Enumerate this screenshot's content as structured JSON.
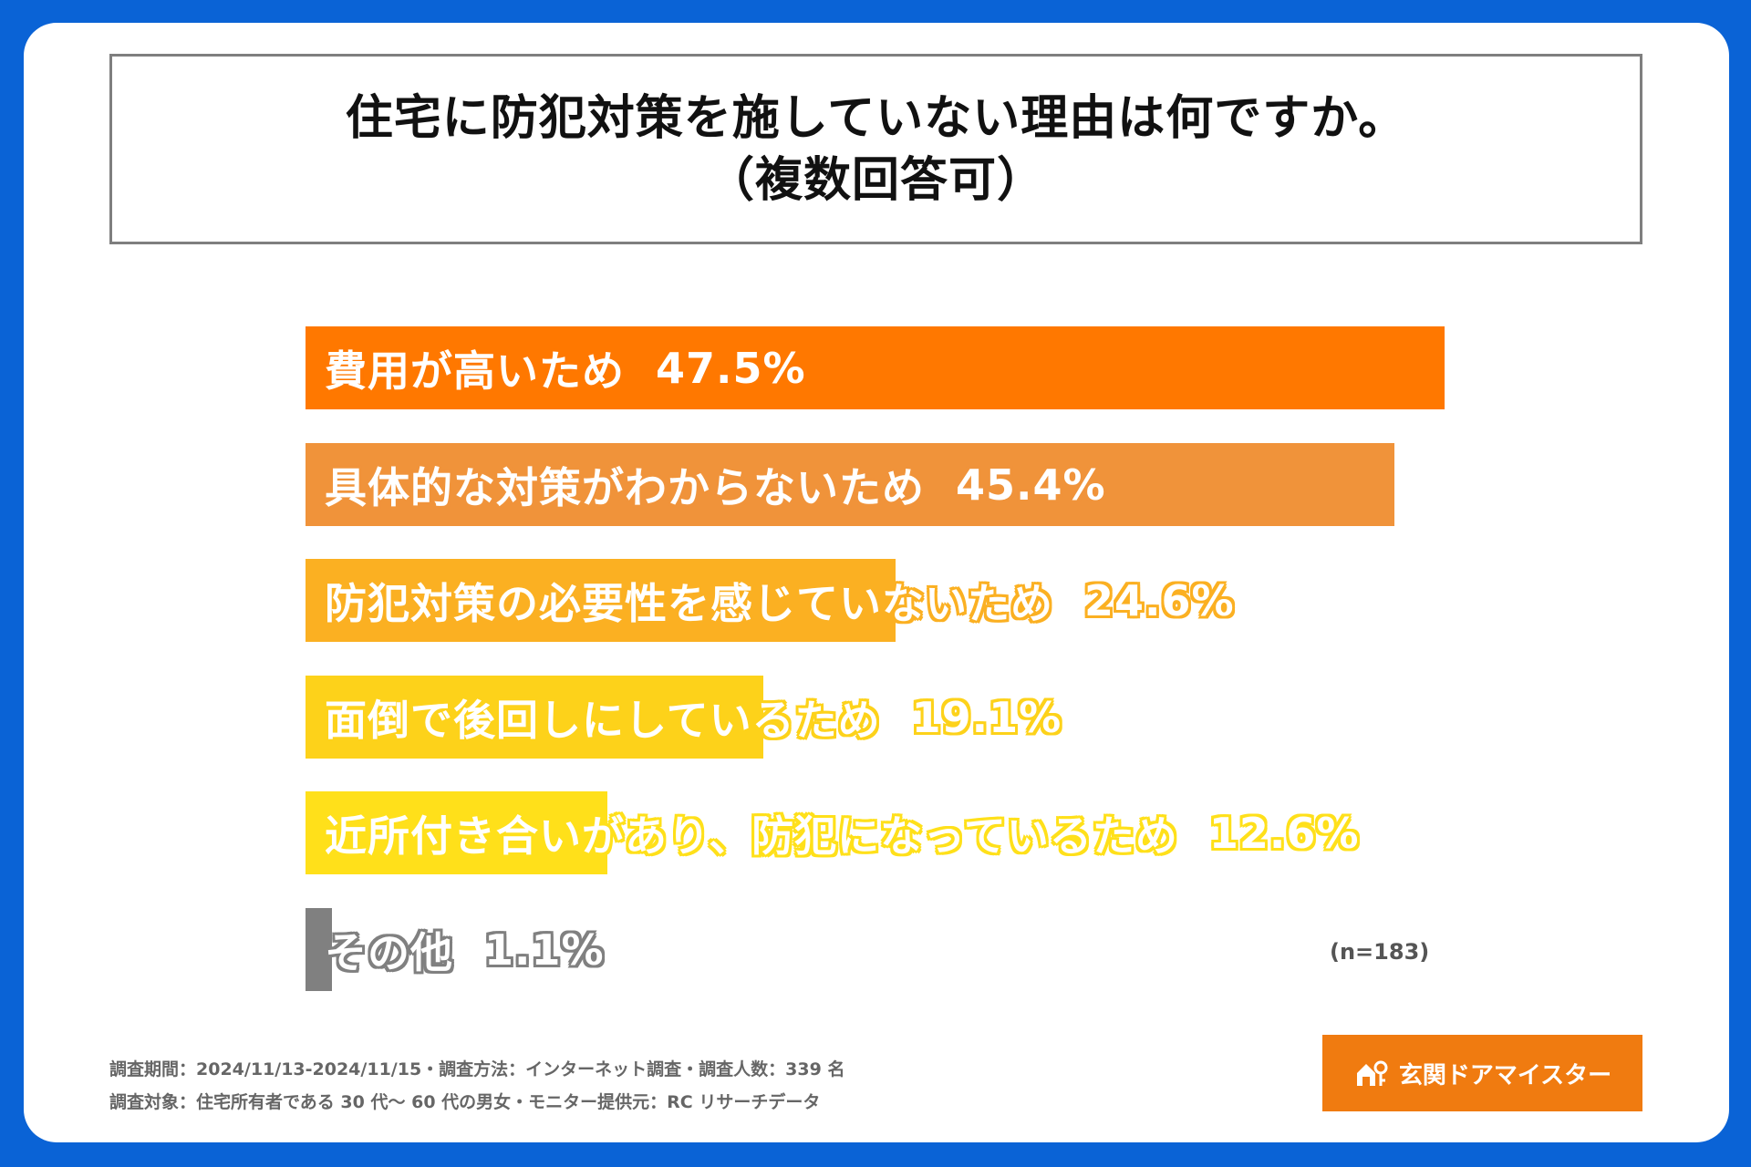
{
  "title": {
    "line1": "住宅に防犯対策を施していない理由は何ですか。",
    "line2": "（複数回答可）"
  },
  "chart_data": {
    "type": "bar",
    "orientation": "horizontal",
    "categories": [
      "費用が高いため",
      "具体的な対策がわからないため",
      "防犯対策の必要性を感じていないため",
      "面倒で後回しにしているため",
      "近所付き合いがあり、防犯になっているため",
      "その他"
    ],
    "values": [
      47.5,
      45.4,
      24.6,
      19.1,
      12.6,
      1.1
    ],
    "value_labels": [
      "47.5%",
      "45.4%",
      "24.6%",
      "19.1%",
      "12.6%",
      "1.1%"
    ],
    "colors": [
      "#ff7800",
      "#f0933a",
      "#fbb022",
      "#fdd21a",
      "#ffe01a",
      "#808080"
    ],
    "xlim": [
      0,
      47.5
    ],
    "grid": false,
    "legend": "none"
  },
  "sample_size": "(n=183)",
  "footer": {
    "line1": "調査期間：2024/11/13-2024/11/15・調査方法：インターネット調査・調査人数：339 名",
    "line2": "調査対象：住宅所有者である 30 代～ 60 代の男女・モニター提供元：RC リサーチデータ"
  },
  "brand": {
    "name": "玄関ドアマイスター",
    "icon": "house-key-icon",
    "color": "#f07b10"
  }
}
